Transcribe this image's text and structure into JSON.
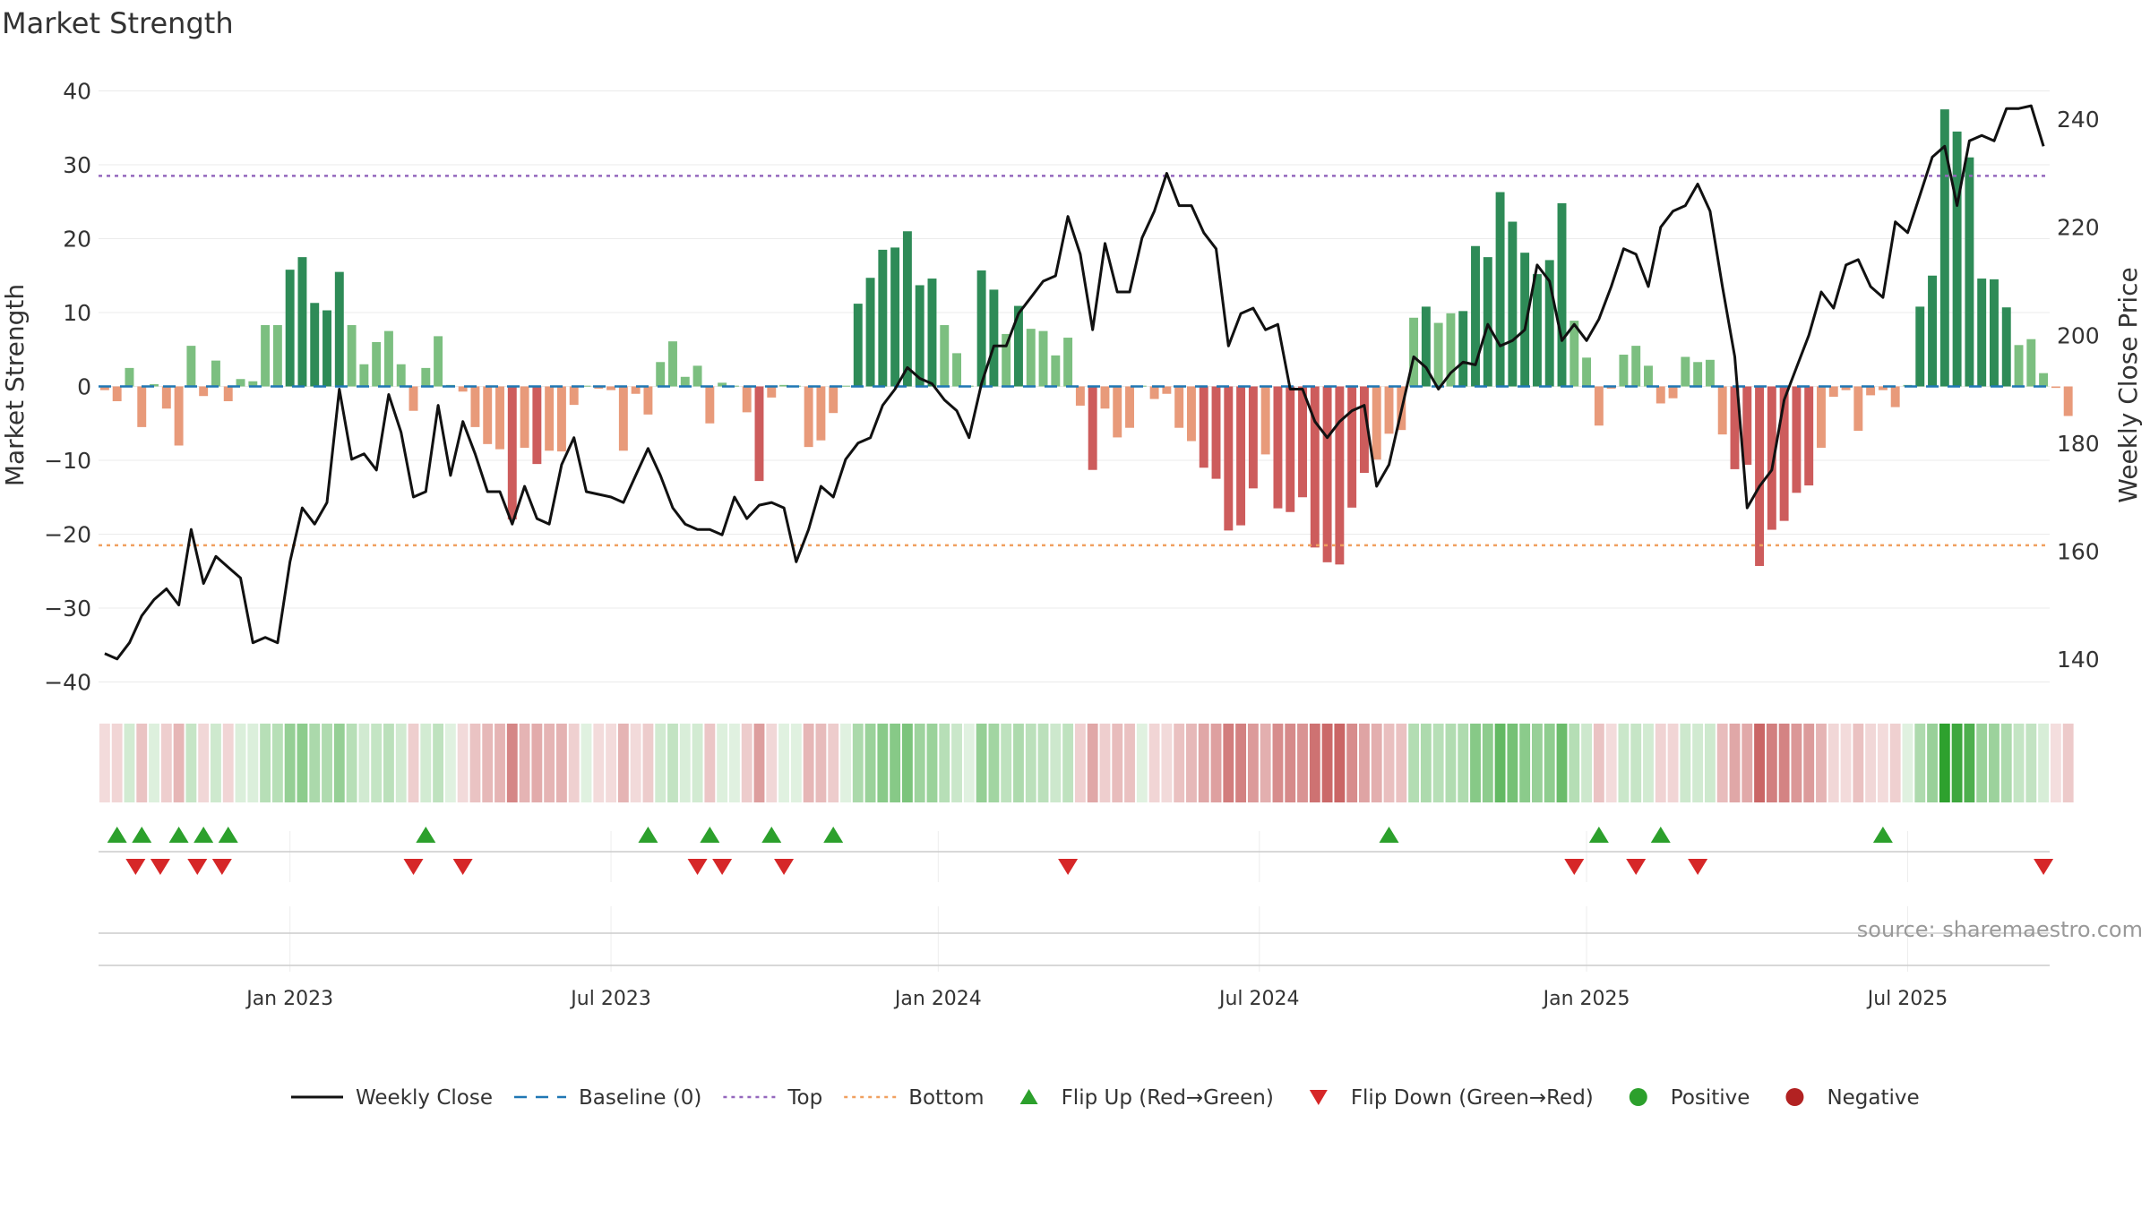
{
  "chart_data": {
    "type": "bar",
    "title": "Market Strength",
    "ylabel": "Market Strength",
    "y2label": "Weekly Close Price",
    "ylim": [
      -42,
      42
    ],
    "y2lim": [
      133,
      248
    ],
    "yticks": [
      40,
      30,
      20,
      10,
      0,
      -10,
      -20,
      -30,
      -40
    ],
    "ytick_labels": [
      "40",
      "30",
      "20",
      "10",
      "0",
      "−10",
      "−20",
      "−30",
      "−40"
    ],
    "y2ticks": [
      240,
      220,
      200,
      180,
      160,
      140
    ],
    "y2tick_labels": [
      "240",
      "220",
      "200",
      "180",
      "160",
      "140"
    ],
    "x_range_weeks": [
      -0.5,
      157.5
    ],
    "xticks": [
      {
        "label": "Jan 2023",
        "week": 15
      },
      {
        "label": "Jul 2023",
        "week": 41
      },
      {
        "label": "Jan 2024",
        "week": 67.5
      },
      {
        "label": "Jul 2024",
        "week": 93.5
      },
      {
        "label": "Jan 2025",
        "week": 120
      },
      {
        "label": "Jul 2025",
        "week": 146
      }
    ],
    "strength": [
      -0.5,
      -2,
      2.5,
      -5.5,
      0.3,
      -3,
      -8,
      5.5,
      -1.3,
      3.5,
      -2,
      1,
      0.7,
      8.3,
      8.3,
      15.8,
      17.5,
      11.3,
      10.3,
      15.5,
      8.3,
      3,
      6,
      7.5,
      3,
      -3.3,
      2.5,
      6.8,
      0.2,
      -0.7,
      -5.5,
      -7.8,
      -8.5,
      -18,
      -8.3,
      -10.5,
      -8.7,
      -8.8,
      -2.5,
      0.1,
      -0.3,
      -0.5,
      -8.7,
      -1,
      -3.8,
      3.3,
      6.1,
      1.3,
      2.8,
      -5,
      0.5,
      0.1,
      -3.5,
      -12.8,
      -1.5,
      0.2,
      0.1,
      -8.2,
      -7.3,
      -3.6,
      0.1,
      11.2,
      14.7,
      18.5,
      18.8,
      21,
      13.7,
      14.6,
      8.3,
      4.5,
      0.1,
      15.7,
      13.1,
      7.1,
      10.9,
      7.8,
      7.5,
      4.2,
      6.6,
      -2.6,
      -11.3,
      -3,
      -6.9,
      -5.6,
      0.1,
      -1.7,
      -1,
      -5.6,
      -7.4,
      -11,
      -12.5,
      -19.5,
      -18.8,
      -13.8,
      -9.2,
      -16.5,
      -17,
      -15,
      -21.8,
      -23.8,
      -24.1,
      -16.4,
      -11.7,
      -9.9,
      -6.4,
      -5.9,
      9.3,
      10.8,
      8.6,
      9.9,
      10.2,
      19,
      17.5,
      26.3,
      22.3,
      18.1,
      15.2,
      17.1,
      24.8,
      8.9,
      3.9,
      -5.3,
      -0.3,
      4.3,
      5.5,
      2.8,
      -2.3,
      -1.6,
      4,
      3.3,
      3.6,
      -6.5,
      -11.2,
      -10.6,
      -24.3,
      -19.4,
      -18.2,
      -14.4,
      -13.4,
      -8.3,
      -1.4,
      -0.5,
      -6,
      -1.2,
      -0.5,
      -2.8,
      0.2,
      10.8,
      15,
      37.5,
      34.5,
      31,
      14.6,
      14.5,
      10.7,
      5.6,
      6.4,
      1.8,
      -0.2,
      -4
    ],
    "weekly_close": [
      141,
      140,
      143,
      148,
      151,
      153,
      150,
      164,
      154,
      159,
      157,
      155,
      143,
      144,
      143,
      158,
      168,
      165,
      169,
      190,
      177,
      178,
      175,
      189,
      182,
      170,
      171,
      187,
      174,
      184,
      178,
      171,
      171,
      165,
      172,
      166,
      165,
      176,
      181,
      171,
      170.5,
      170,
      169,
      174,
      179,
      174,
      168,
      165,
      164,
      164,
      163,
      170,
      166,
      168.5,
      169,
      168,
      158,
      164,
      172,
      170,
      177,
      180,
      181,
      187,
      190,
      194,
      192,
      191,
      188,
      186,
      181,
      191,
      198,
      198,
      204,
      207,
      210,
      211,
      222,
      215,
      201,
      217,
      208,
      208,
      218,
      223,
      230,
      224,
      224,
      219,
      216,
      198,
      204,
      205,
      201,
      202,
      190,
      190,
      184,
      181,
      184,
      186,
      187,
      172,
      176,
      186,
      196,
      194,
      190,
      193,
      195,
      194.5,
      202,
      198,
      199,
      201,
      213,
      210,
      199,
      202,
      199,
      203,
      209,
      216,
      215,
      209,
      220,
      223,
      224,
      228,
      223,
      209,
      196,
      168,
      172,
      175,
      188,
      194,
      200,
      208,
      205,
      213,
      214,
      209,
      207,
      221,
      219,
      226,
      233,
      235,
      224,
      236,
      237,
      236,
      242,
      242,
      242.5,
      235
    ],
    "flip_up_weeks": [
      1,
      3,
      6,
      8,
      10,
      26,
      44,
      49,
      54,
      59,
      104,
      121,
      126,
      144
    ],
    "flip_down_weeks": [
      2.5,
      4.5,
      7.5,
      9.5,
      25,
      29,
      48,
      50,
      55,
      78,
      119,
      124,
      129,
      157
    ],
    "series": [
      {
        "name": "Weekly Close",
        "style": "line",
        "color": "#111111"
      },
      {
        "name": "Baseline (0)",
        "style": "dash",
        "color": "#1f77b4"
      },
      {
        "name": "Top",
        "style": "dot",
        "color": "#9467bd",
        "value": 28.5
      },
      {
        "name": "Bottom",
        "style": "dot",
        "color": "#f0a060",
        "value": -21.5
      },
      {
        "name": "Flip Up (Red→Green)",
        "style": "triangle-up",
        "color": "#2ca02c"
      },
      {
        "name": "Flip Down (Green→Red)",
        "style": "triangle-down",
        "color": "#d62728"
      },
      {
        "name": "Positive",
        "style": "circle",
        "color": "#2ca02c"
      },
      {
        "name": "Negative",
        "style": "circle",
        "color": "#b22222"
      }
    ],
    "colors": {
      "pos_strong": "#2e8b57",
      "pos_light": "#7cbf80",
      "neg_strong": "#cd5c5c",
      "neg_light": "#e89a7a",
      "heat_pos": "#2ca02c",
      "heat_neg": "#b22222"
    }
  },
  "source": "source: sharemaestro.com"
}
